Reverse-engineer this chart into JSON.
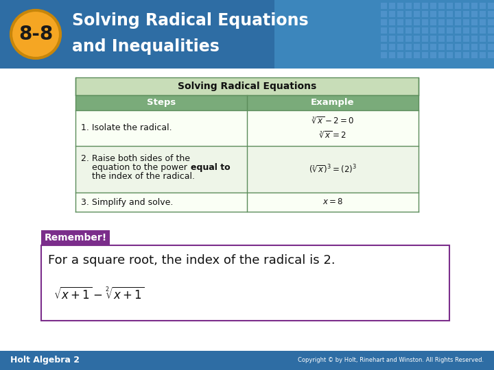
{
  "title_badge": "8-8",
  "title_line1": "Solving Radical Equations",
  "title_line2": "and Inequalities",
  "header_bg": "#2E6DA4",
  "header_bg2": "#4A9FD4",
  "header_badge_bg": "#F5A623",
  "header_badge_border": "#C8860A",
  "header_text_color": "#FFFFFF",
  "slide_bg": "#F5F5F5",
  "table_title": "Solving Radical Equations",
  "table_title_bg": "#C8DDB8",
  "table_header_bg": "#7AAB7A",
  "table_header_text": "#FFFFFF",
  "table_row1_bg": "#FAFFF5",
  "table_row2_bg": "#EEF5E8",
  "table_row3_bg": "#FAFFF5",
  "table_border": "#5B8C5A",
  "col1_header": "Steps",
  "col2_header": "Example",
  "step1": "1. Isolate the radical.",
  "step3": "3. Simplify and solve.",
  "remember_bg": "#7B2D8B",
  "remember_text": "Remember!",
  "remember_text_color": "#FFFFFF",
  "box_border": "#7B2D8B",
  "box_text": "For a square root, the index of the radical is 2.",
  "footer_bg": "#2E6DA4",
  "footer_text": "Holt Algebra 2",
  "footer_copyright": "Copyright © by Holt, Rinehart and Winston. All Rights Reserved.",
  "footer_text_color": "#FFFFFF",
  "dots_color": "#5B9BD5"
}
